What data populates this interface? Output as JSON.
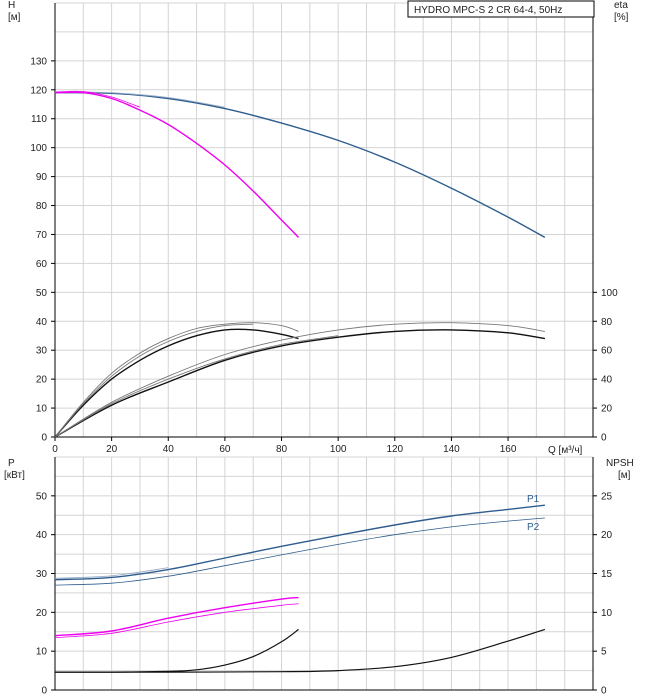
{
  "title_box": "HYDRO MPC-S 2 CR 64-4, 50Hz",
  "colors": {
    "blue": "#2f5d8e",
    "magenta": "#ee00ee",
    "black": "#111111",
    "gray": "#777777",
    "grid": "#d4d4d4"
  },
  "chart_data": [
    {
      "type": "line",
      "name": "head-efficiency",
      "y_label_left": "H",
      "y_unit_left": "[м]",
      "y_label_right": "eta",
      "y_unit_right": "[%]",
      "x_label": "Q [м³/ч]",
      "xlim": [
        0,
        190
      ],
      "ylim_left": [
        0,
        150
      ],
      "ylim_right": [
        0,
        300
      ],
      "x_ticks": [
        0,
        20,
        40,
        60,
        80,
        100,
        120,
        140,
        160
      ],
      "y_ticks_left": [
        0,
        10,
        20,
        30,
        40,
        50,
        60,
        70,
        80,
        90,
        100,
        110,
        120,
        130
      ],
      "y_ticks_right": [
        0,
        20,
        40,
        60,
        80,
        100
      ],
      "series": [
        {
          "axis": "left",
          "color": "#2f5d8e",
          "width": 1.4,
          "points": [
            [
              0,
              119
            ],
            [
              20,
              118.8
            ],
            [
              40,
              117
            ],
            [
              60,
              113.5
            ],
            [
              80,
              108.5
            ],
            [
              100,
              102.5
            ],
            [
              120,
              95
            ],
            [
              140,
              86
            ],
            [
              160,
              76
            ],
            [
              173,
              69
            ]
          ]
        },
        {
          "axis": "left",
          "color": "#9aaec8",
          "width": 0.9,
          "points": [
            [
              0,
              119.3
            ],
            [
              20,
              119
            ],
            [
              40,
              117.3
            ],
            [
              60,
              114
            ]
          ]
        },
        {
          "axis": "left",
          "color": "#ee00ee",
          "width": 1.4,
          "points": [
            [
              0,
              119
            ],
            [
              10,
              119
            ],
            [
              20,
              117
            ],
            [
              30,
              113
            ],
            [
              40,
              108
            ],
            [
              50,
              101.5
            ],
            [
              60,
              94
            ],
            [
              70,
              85
            ],
            [
              80,
              75
            ],
            [
              86,
              69
            ]
          ]
        },
        {
          "axis": "left",
          "color": "#ee00ee",
          "width": 0.8,
          "points": [
            [
              0,
              119.2
            ],
            [
              10,
              119.4
            ],
            [
              20,
              117.5
            ],
            [
              30,
              114
            ]
          ]
        },
        {
          "axis": "right",
          "color": "#111111",
          "width": 1.4,
          "points": [
            [
              0,
              0
            ],
            [
              10,
              22
            ],
            [
              20,
              40
            ],
            [
              30,
              53
            ],
            [
              40,
              63
            ],
            [
              50,
              70
            ],
            [
              60,
              74
            ],
            [
              70,
              74
            ],
            [
              80,
              71
            ],
            [
              86,
              68
            ]
          ]
        },
        {
          "axis": "right",
          "color": "#777777",
          "width": 0.9,
          "points": [
            [
              0,
              0
            ],
            [
              10,
              24
            ],
            [
              20,
              44
            ],
            [
              30,
              58
            ],
            [
              40,
              68
            ],
            [
              50,
              75
            ],
            [
              60,
              78
            ],
            [
              70,
              79
            ],
            [
              80,
              77
            ],
            [
              86,
              73
            ]
          ]
        },
        {
          "axis": "right",
          "color": "#777777",
          "width": 0.9,
          "points": [
            [
              0,
              0
            ],
            [
              10,
              23
            ],
            [
              20,
              42
            ],
            [
              30,
              56
            ],
            [
              40,
              66
            ],
            [
              50,
              73
            ],
            [
              60,
              77
            ],
            [
              70,
              78
            ]
          ]
        },
        {
          "axis": "right",
          "color": "#111111",
          "width": 1.4,
          "points": [
            [
              0,
              0
            ],
            [
              20,
              22
            ],
            [
              40,
              38
            ],
            [
              60,
              53
            ],
            [
              80,
              63
            ],
            [
              100,
              69
            ],
            [
              120,
              73
            ],
            [
              140,
              74
            ],
            [
              160,
              72
            ],
            [
              173,
              68
            ]
          ]
        },
        {
          "axis": "right",
          "color": "#777777",
          "width": 0.9,
          "points": [
            [
              0,
              0
            ],
            [
              20,
              24
            ],
            [
              40,
              42
            ],
            [
              60,
              57
            ],
            [
              80,
              67
            ],
            [
              100,
              74
            ],
            [
              120,
              78
            ],
            [
              140,
              79
            ],
            [
              160,
              77
            ],
            [
              173,
              73
            ]
          ]
        },
        {
          "axis": "right",
          "color": "#777777",
          "width": 0.9,
          "points": [
            [
              0,
              0
            ],
            [
              20,
              23
            ],
            [
              40,
              40
            ],
            [
              60,
              54
            ],
            [
              80,
              64
            ],
            [
              100,
              70
            ]
          ]
        }
      ]
    },
    {
      "type": "line",
      "name": "power-npsh",
      "y_label_left": "P",
      "y_unit_left": "[кВт]",
      "y_label_right": "NPSH",
      "y_unit_right": "[м]",
      "xlim": [
        0,
        190
      ],
      "ylim_left": [
        0,
        60
      ],
      "ylim_right": [
        0,
        30
      ],
      "y_ticks_left": [
        0,
        10,
        20,
        30,
        40,
        50
      ],
      "y_ticks_right": [
        0,
        5,
        10,
        15,
        20,
        25
      ],
      "series": [
        {
          "axis": "left",
          "color": "#2f5d8e",
          "width": 1.4,
          "label": "P1",
          "points": [
            [
              0,
              28.4
            ],
            [
              20,
              29
            ],
            [
              40,
              31
            ],
            [
              60,
              34
            ],
            [
              80,
              37
            ],
            [
              100,
              39.8
            ],
            [
              120,
              42.5
            ],
            [
              140,
              44.8
            ],
            [
              160,
              46.5
            ],
            [
              173,
              47.6
            ]
          ]
        },
        {
          "axis": "left",
          "color": "#9aaec8",
          "width": 0.9,
          "points": [
            [
              0,
              28.8
            ],
            [
              20,
              29.4
            ],
            [
              40,
              31.5
            ]
          ]
        },
        {
          "axis": "left",
          "color": "#2f5d8e",
          "width": 0.8,
          "label": "P2",
          "points": [
            [
              0,
              27
            ],
            [
              20,
              27.5
            ],
            [
              40,
              29.3
            ],
            [
              60,
              32
            ],
            [
              80,
              34.8
            ],
            [
              100,
              37.5
            ],
            [
              120,
              40
            ],
            [
              140,
              42
            ],
            [
              160,
              43.5
            ],
            [
              173,
              44.3
            ]
          ]
        },
        {
          "axis": "left",
          "color": "#ee00ee",
          "width": 1.4,
          "points": [
            [
              0,
              14
            ],
            [
              20,
              15.2
            ],
            [
              40,
              18.5
            ],
            [
              60,
              21.2
            ],
            [
              80,
              23.4
            ],
            [
              86,
              23.8
            ]
          ]
        },
        {
          "axis": "left",
          "color": "#ee00ee",
          "width": 0.8,
          "points": [
            [
              0,
              13.5
            ],
            [
              20,
              14.6
            ],
            [
              40,
              17.5
            ],
            [
              60,
              20
            ],
            [
              80,
              21.8
            ],
            [
              86,
              22.2
            ]
          ]
        },
        {
          "axis": "right",
          "color": "#111111",
          "width": 1.2,
          "points": [
            [
              0,
              2.3
            ],
            [
              20,
              2.3
            ],
            [
              40,
              2.4
            ],
            [
              50,
              2.6
            ],
            [
              60,
              3.2
            ],
            [
              70,
              4.3
            ],
            [
              80,
              6.2
            ],
            [
              86,
              7.8
            ]
          ]
        },
        {
          "axis": "right",
          "color": "#111111",
          "width": 1.2,
          "points": [
            [
              0,
              2.3
            ],
            [
              40,
              2.3
            ],
            [
              80,
              2.35
            ],
            [
              100,
              2.5
            ],
            [
              120,
              3
            ],
            [
              140,
              4.2
            ],
            [
              160,
              6.3
            ],
            [
              173,
              7.8
            ]
          ]
        }
      ]
    }
  ]
}
